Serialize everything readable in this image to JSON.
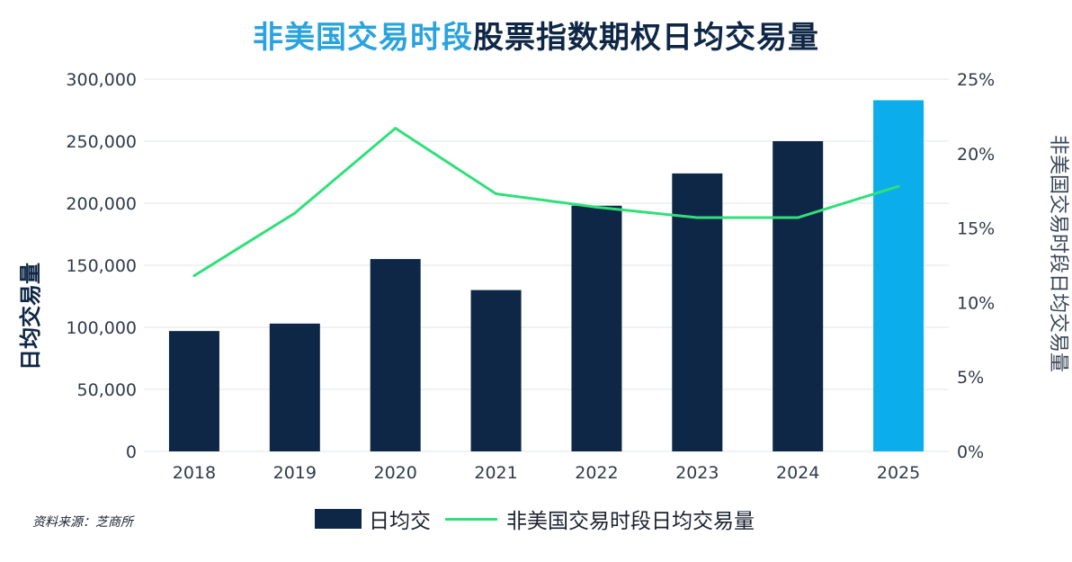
{
  "title": {
    "highlight": "非美国交易时段",
    "rest": "股票指数期权日均交易量"
  },
  "source_note": "资料来源：芝商所",
  "legend": {
    "bar_label": "日均交",
    "line_label": "非美国交易时段日均交易量"
  },
  "colors": {
    "bar": "#0f2746",
    "bar_highlight": "#0baeea",
    "line": "#2fe07a",
    "title_highlight": "#2aa3dd"
  },
  "chart_data": {
    "type": "bar",
    "title": "非美国交易时段股票指数期权日均交易量",
    "categories": [
      "2018",
      "2019",
      "2020",
      "2021",
      "2022",
      "2023",
      "2024",
      "2025"
    ],
    "series": [
      {
        "name": "日均交",
        "type": "bar",
        "axis": "left",
        "values": [
          97000,
          103000,
          155000,
          130000,
          198000,
          224000,
          250000,
          283000
        ]
      },
      {
        "name": "非美国交易时段日均交易量",
        "type": "line",
        "axis": "right",
        "values": [
          11.8,
          16.0,
          21.7,
          17.3,
          16.4,
          15.7,
          15.7,
          17.8
        ]
      }
    ],
    "highlight_category": "2025",
    "ylabel": "日均交易量",
    "ylabel_right": "非美国交易时段日均交易量",
    "ylim": [
      0,
      300000
    ],
    "ylim_right": [
      0,
      25
    ],
    "yticks": [
      "0",
      "50,000",
      "100,000",
      "150,000",
      "200,000",
      "250,000",
      "300,000"
    ],
    "yticks_right": [
      "0%",
      "5%",
      "10%",
      "15%",
      "20%",
      "25%"
    ],
    "grid": true,
    "legend_position": "bottom"
  }
}
